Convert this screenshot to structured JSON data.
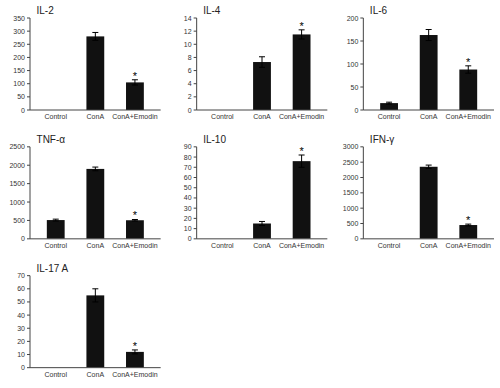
{
  "chart_data": [
    {
      "type": "bar",
      "title": "IL-2",
      "categories": [
        "Control",
        "ConA",
        "ConA+Emodin"
      ],
      "values": [
        0,
        280,
        105
      ],
      "errors": [
        0,
        15,
        10
      ],
      "annotations": [
        null,
        null,
        "*"
      ],
      "color": "#111111",
      "ylim": [
        0,
        350
      ],
      "yticks": [
        0,
        50,
        100,
        150,
        200,
        250,
        300,
        350
      ]
    },
    {
      "type": "bar",
      "title": "IL-4",
      "categories": [
        "Control",
        "ConA",
        "ConA+Emodin"
      ],
      "values": [
        0,
        7.3,
        11.5
      ],
      "errors": [
        0,
        0.8,
        0.7
      ],
      "annotations": [
        null,
        null,
        "*"
      ],
      "color": "#111111",
      "ylim": [
        0,
        14
      ],
      "yticks": [
        0,
        2,
        4,
        6,
        8,
        10,
        12,
        14
      ]
    },
    {
      "type": "bar",
      "title": "IL-6",
      "categories": [
        "Control",
        "ConA",
        "ConA+Emodin"
      ],
      "values": [
        15,
        163,
        88
      ],
      "errors": [
        2,
        12,
        8
      ],
      "annotations": [
        null,
        null,
        "*"
      ],
      "color": "#111111",
      "ylim": [
        0,
        200
      ],
      "yticks": [
        0,
        50,
        100,
        150,
        200
      ]
    },
    {
      "type": "bar",
      "title": "TNF-α",
      "categories": [
        "Control",
        "ConA",
        "ConA+Emodin"
      ],
      "values": [
        510,
        1900,
        505
      ],
      "errors": [
        25,
        50,
        20
      ],
      "annotations": [
        null,
        null,
        "*"
      ],
      "color": "#111111",
      "ylim": [
        0,
        2500
      ],
      "yticks": [
        0,
        500,
        1000,
        1500,
        2000,
        2500
      ]
    },
    {
      "type": "bar",
      "title": "IL-10",
      "categories": [
        "Control",
        "ConA",
        "ConA+Emodin"
      ],
      "values": [
        0,
        15,
        76
      ],
      "errors": [
        0,
        2,
        6
      ],
      "annotations": [
        null,
        null,
        "*"
      ],
      "color": "#111111",
      "ylim": [
        0,
        90
      ],
      "yticks": [
        0,
        10,
        20,
        30,
        40,
        50,
        60,
        70,
        80,
        90
      ]
    },
    {
      "type": "bar",
      "title": "IFN-γ",
      "categories": [
        "Control",
        "ConA",
        "ConA+Emodin"
      ],
      "values": [
        0,
        2350,
        450
      ],
      "errors": [
        0,
        55,
        30
      ],
      "annotations": [
        null,
        null,
        "*"
      ],
      "color": "#111111",
      "ylim": [
        0,
        3000
      ],
      "yticks": [
        0,
        500,
        1000,
        1500,
        2000,
        2500,
        3000
      ]
    },
    {
      "type": "bar",
      "title": "IL-17 A",
      "categories": [
        "Control",
        "ConA",
        "ConA+Emodin"
      ],
      "values": [
        0,
        55,
        12
      ],
      "errors": [
        0,
        5,
        1.5
      ],
      "annotations": [
        null,
        null,
        "*"
      ],
      "color": "#111111",
      "ylim": [
        0,
        70
      ],
      "yticks": [
        0,
        10,
        20,
        30,
        40,
        50,
        60,
        70
      ]
    }
  ]
}
